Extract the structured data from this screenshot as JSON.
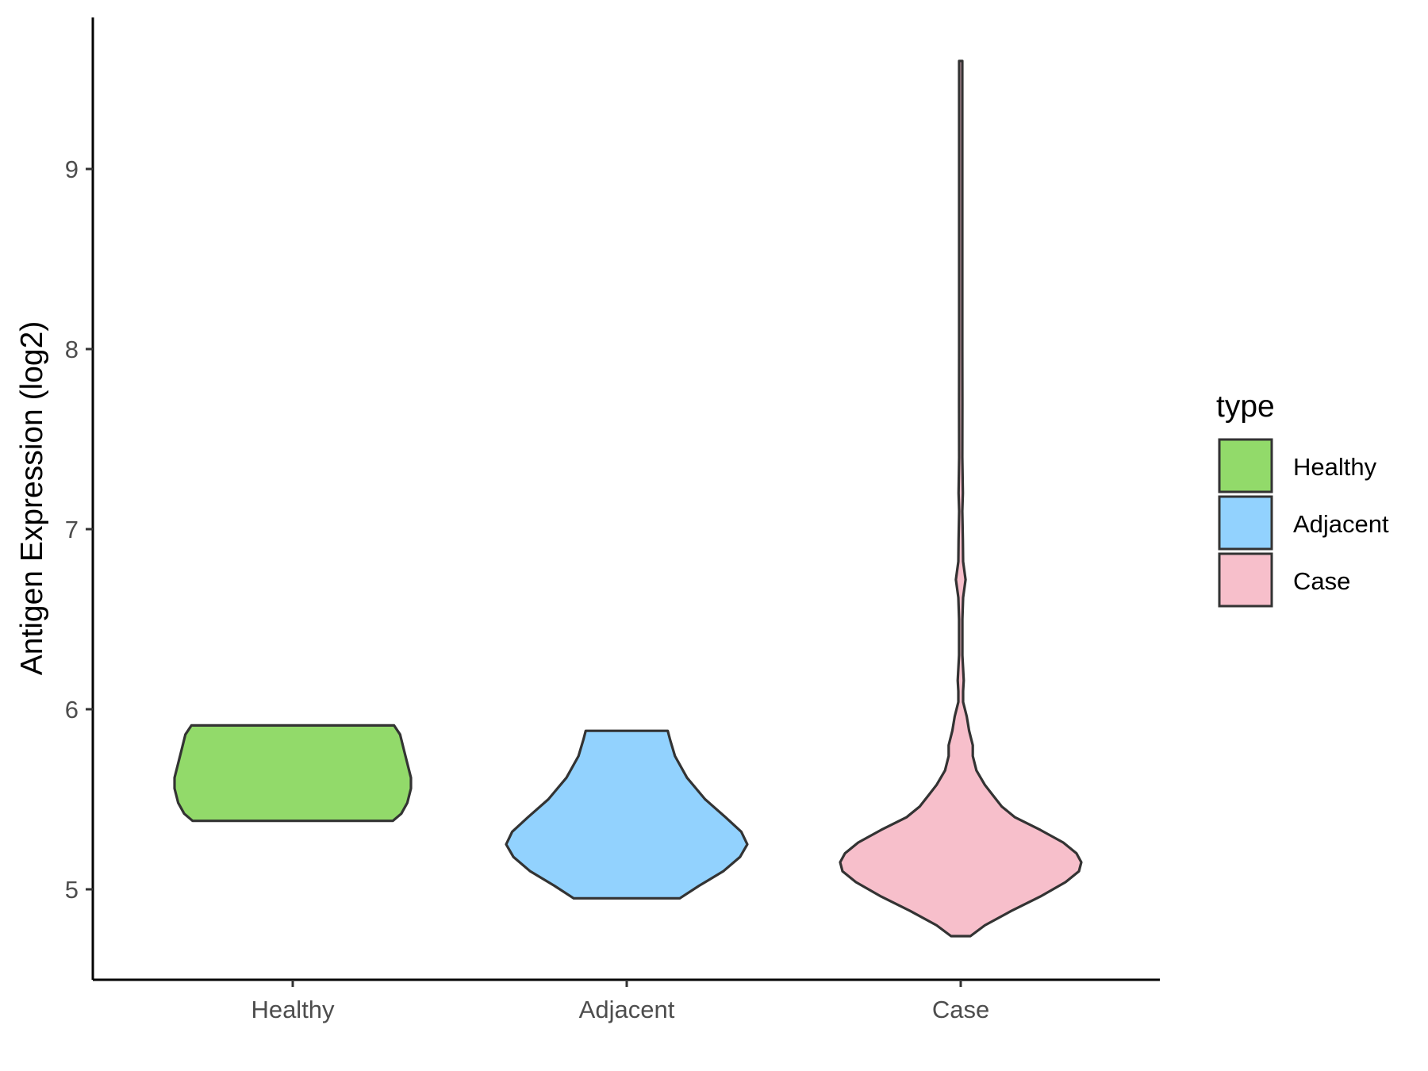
{
  "chart_data": {
    "type": "violin",
    "title": "",
    "xlabel": "",
    "ylabel": "Antigen Expression (log2)",
    "categories": [
      "Healthy",
      "Adjacent",
      "Case"
    ],
    "yticks": [
      5,
      6,
      7,
      8,
      9
    ],
    "ylim": [
      4.5,
      9.85
    ],
    "grid": false,
    "legend": {
      "title": "type",
      "position": "right",
      "entries": [
        {
          "label": "Healthy",
          "color": "#92DA6A"
        },
        {
          "label": "Adjacent",
          "color": "#92D2FE"
        },
        {
          "label": "Case",
          "color": "#F7BFCB"
        }
      ]
    },
    "violins": [
      {
        "category": "Healthy",
        "color": "#92DA6A",
        "ymin": 5.38,
        "ymax": 5.91,
        "profile": [
          [
            5.38,
            0.83
          ],
          [
            5.42,
            0.9
          ],
          [
            5.48,
            0.95
          ],
          [
            5.56,
            0.98
          ],
          [
            5.62,
            0.98
          ],
          [
            5.7,
            0.95
          ],
          [
            5.78,
            0.92
          ],
          [
            5.86,
            0.89
          ],
          [
            5.91,
            0.84
          ]
        ]
      },
      {
        "category": "Adjacent",
        "color": "#92D2FE",
        "ymin": 4.95,
        "ymax": 5.88,
        "profile": [
          [
            4.95,
            0.44
          ],
          [
            5.02,
            0.6
          ],
          [
            5.1,
            0.8
          ],
          [
            5.18,
            0.94
          ],
          [
            5.25,
            1.0
          ],
          [
            5.32,
            0.95
          ],
          [
            5.4,
            0.82
          ],
          [
            5.5,
            0.65
          ],
          [
            5.62,
            0.5
          ],
          [
            5.74,
            0.4
          ],
          [
            5.83,
            0.36
          ],
          [
            5.88,
            0.34
          ]
        ]
      },
      {
        "category": "Case",
        "color": "#F7BFCB",
        "ymin": 4.74,
        "ymax": 9.6,
        "profile": [
          [
            4.74,
            0.08
          ],
          [
            4.8,
            0.2
          ],
          [
            4.88,
            0.42
          ],
          [
            4.96,
            0.66
          ],
          [
            5.04,
            0.87
          ],
          [
            5.1,
            0.98
          ],
          [
            5.15,
            1.0
          ],
          [
            5.2,
            0.96
          ],
          [
            5.26,
            0.85
          ],
          [
            5.33,
            0.66
          ],
          [
            5.4,
            0.45
          ],
          [
            5.46,
            0.34
          ],
          [
            5.52,
            0.27
          ],
          [
            5.58,
            0.2
          ],
          [
            5.66,
            0.13
          ],
          [
            5.74,
            0.1
          ],
          [
            5.8,
            0.1
          ],
          [
            5.88,
            0.07
          ],
          [
            5.96,
            0.05
          ],
          [
            6.04,
            0.02
          ],
          [
            6.1,
            0.02
          ],
          [
            6.16,
            0.025
          ],
          [
            6.3,
            0.014
          ],
          [
            6.5,
            0.014
          ],
          [
            6.62,
            0.02
          ],
          [
            6.72,
            0.04
          ],
          [
            6.82,
            0.02
          ],
          [
            6.94,
            0.018
          ],
          [
            7.1,
            0.012
          ],
          [
            7.2,
            0.018
          ],
          [
            7.4,
            0.01
          ],
          [
            7.7,
            0.014
          ],
          [
            8.0,
            0.012
          ],
          [
            8.3,
            0.012
          ],
          [
            8.6,
            0.008
          ],
          [
            9.0,
            0.008
          ],
          [
            9.3,
            0.01
          ],
          [
            9.5,
            0.008
          ],
          [
            9.6,
            0.006
          ]
        ]
      }
    ]
  }
}
